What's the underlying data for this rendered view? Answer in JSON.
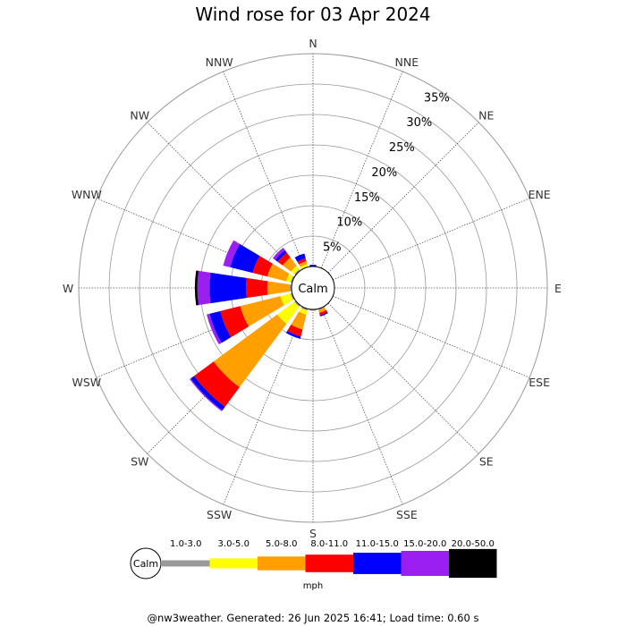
{
  "chart_data": {
    "type": "windrose",
    "title": "Wind rose for 03 Apr 2024",
    "calm_label": "Calm",
    "directions": [
      "N",
      "NNE",
      "NE",
      "ENE",
      "E",
      "ESE",
      "SE",
      "SSE",
      "S",
      "SSW",
      "SW",
      "WSW",
      "W",
      "WNW",
      "NW",
      "NNW"
    ],
    "radial_ticks": [
      5,
      10,
      15,
      20,
      25,
      30,
      35
    ],
    "radial_tick_labels": [
      "5%",
      "10%",
      "15%",
      "20%",
      "25%",
      "30%",
      "35%"
    ],
    "radial_max": 35,
    "speed_unit": "mph",
    "speed_bins": [
      {
        "label": "1.0-3.0",
        "color": "#999999"
      },
      {
        "label": "3.0-5.0",
        "color": "#ffff00"
      },
      {
        "label": "5.0-8.0",
        "color": "#ffa000"
      },
      {
        "label": "8.0-11.0",
        "color": "#ff0000"
      },
      {
        "label": "11.0-15.0",
        "color": "#0000ff"
      },
      {
        "label": "15.0-20.0",
        "color": "#9b1ff0"
      },
      {
        "label": "20.0-50.0",
        "color": "#000000"
      }
    ],
    "frequencies": {
      "N": [
        0,
        0,
        0,
        0,
        0.3,
        0,
        0
      ],
      "NNE": [
        0,
        0,
        0,
        0,
        0,
        0,
        0
      ],
      "NE": [
        0,
        0,
        0,
        0,
        0,
        0,
        0
      ],
      "ENE": [
        0,
        0,
        0,
        0,
        0,
        0,
        0
      ],
      "E": [
        0,
        0,
        0,
        0,
        0,
        0,
        0
      ],
      "ESE": [
        0,
        0,
        0,
        0,
        0,
        0,
        0
      ],
      "SE": [
        0,
        0,
        0,
        0,
        0,
        0,
        0
      ],
      "SSE": [
        0.2,
        0,
        0.5,
        0.4,
        0.2,
        0,
        0
      ],
      "S": [
        0.2,
        0,
        0,
        0,
        0,
        0,
        0
      ],
      "SSW": [
        0.3,
        0.7,
        2.5,
        1.2,
        0.4,
        0,
        0
      ],
      "SW": [
        0.3,
        3.5,
        13.0,
        4.0,
        0.7,
        0.2,
        0
      ],
      "WSW": [
        0.3,
        1.7,
        6.8,
        3.4,
        1.8,
        0.5,
        0
      ],
      "W": [
        0.3,
        0,
        3.7,
        3.5,
        6.0,
        2.0,
        0.4
      ],
      "WNW": [
        0.3,
        0.7,
        3.2,
        2.5,
        3.8,
        1.2,
        0
      ],
      "NW": [
        0.3,
        0.7,
        1.7,
        1.0,
        0.5,
        0.5,
        0
      ],
      "NNW": [
        0,
        0.5,
        0.5,
        0.5,
        0.8,
        0,
        0
      ]
    }
  },
  "footer": "@nw3weather. Generated: 26 Jun 2025 16:41; Load time: 0.60 s"
}
